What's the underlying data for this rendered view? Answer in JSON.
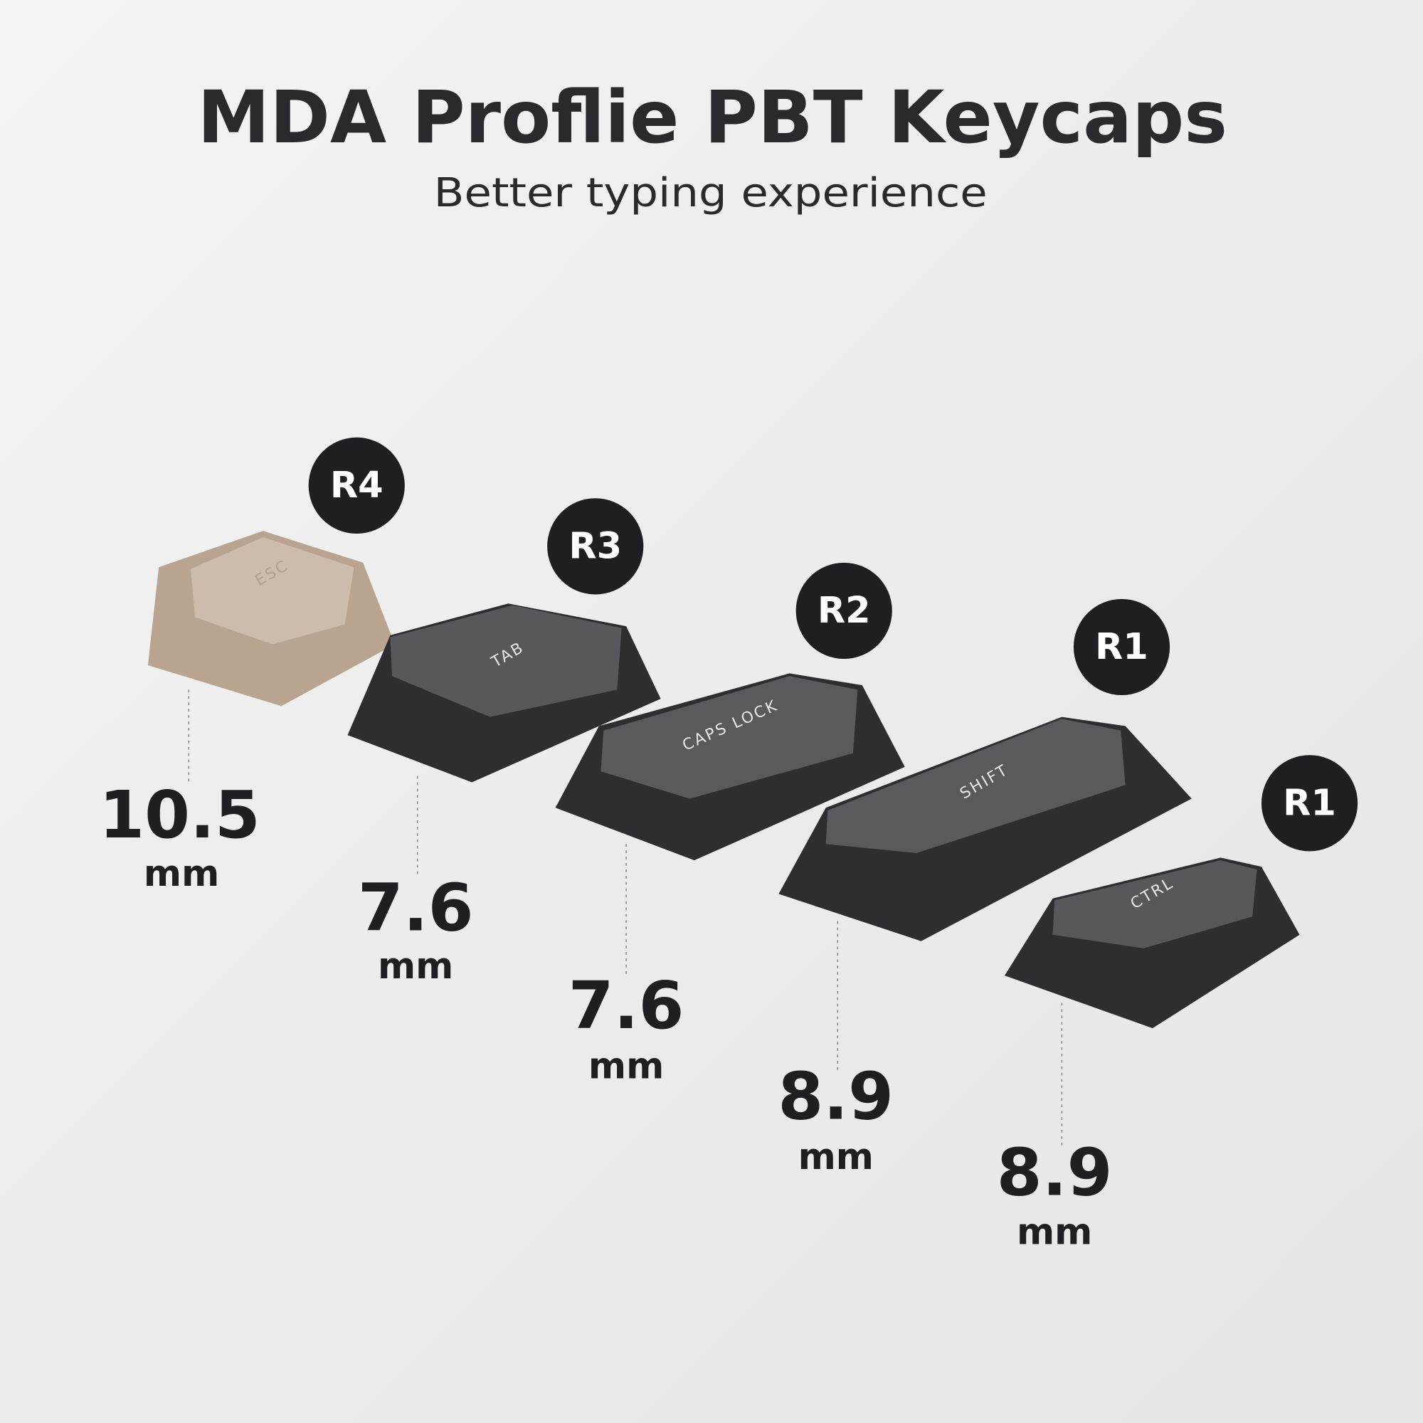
{
  "title": "MDA Proflie PBT Keycaps",
  "subtitle": "Better typing experience",
  "keycaps": [
    {
      "row": "R4",
      "legend": "ESC",
      "height": "10.5",
      "unit": "mm"
    },
    {
      "row": "R3",
      "legend": "TAB",
      "height": "7.6",
      "unit": "mm"
    },
    {
      "row": "R2",
      "legend": "CAPS LOCK",
      "height": "7.6",
      "unit": "mm"
    },
    {
      "row": "R1",
      "legend": "SHIFT",
      "height": "8.9",
      "unit": "mm"
    },
    {
      "row": "R1",
      "legend": "CTRL",
      "height": "8.9",
      "unit": "mm"
    }
  ]
}
